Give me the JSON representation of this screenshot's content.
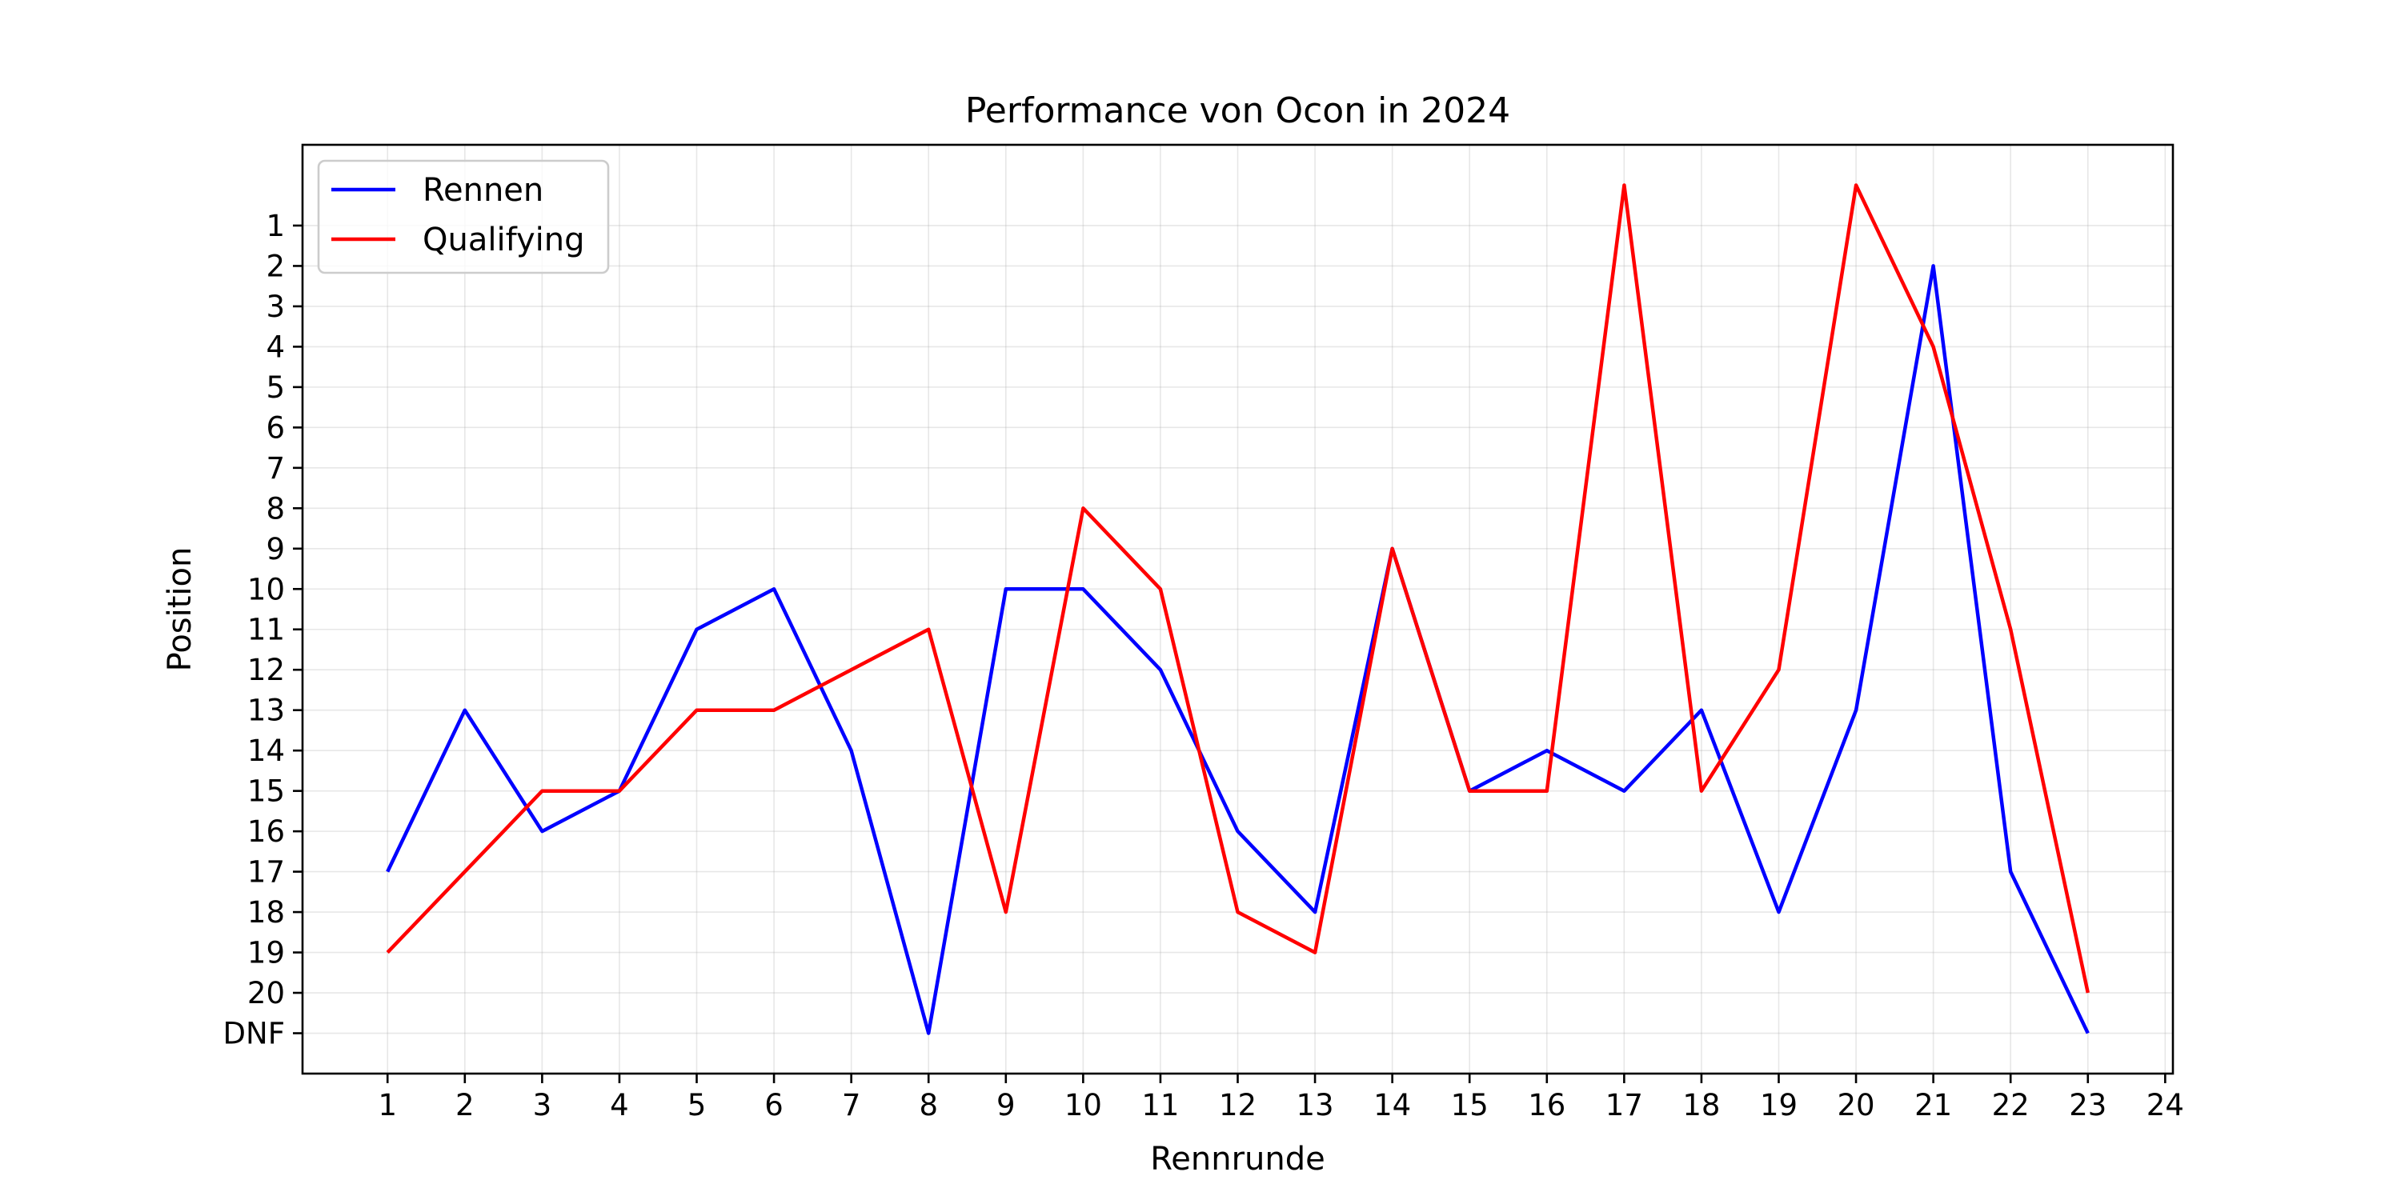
{
  "chart_data": {
    "type": "line",
    "title": "Performance von Ocon in 2024",
    "xlabel": "Rennrunde",
    "ylabel": "Position",
    "x": [
      1,
      2,
      3,
      4,
      5,
      6,
      7,
      8,
      9,
      10,
      11,
      12,
      13,
      14,
      15,
      16,
      17,
      18,
      19,
      20,
      21,
      22,
      23
    ],
    "x_ticks": [
      "1",
      "2",
      "3",
      "4",
      "5",
      "6",
      "7",
      "8",
      "9",
      "10",
      "11",
      "12",
      "13",
      "14",
      "15",
      "16",
      "17",
      "18",
      "19",
      "20",
      "21",
      "22",
      "23",
      "24"
    ],
    "x_tick_values": [
      1,
      2,
      3,
      4,
      5,
      6,
      7,
      8,
      9,
      10,
      11,
      12,
      13,
      14,
      15,
      16,
      17,
      18,
      19,
      20,
      21,
      22,
      23,
      24
    ],
    "xlim": [
      -0.1,
      24.1
    ],
    "y_ticks": [
      "1",
      "2",
      "3",
      "4",
      "5",
      "6",
      "7",
      "8",
      "9",
      "10",
      "11",
      "12",
      "13",
      "14",
      "15",
      "16",
      "17",
      "18",
      "19",
      "20",
      "DNF"
    ],
    "y_tick_values": [
      1,
      2,
      3,
      4,
      5,
      6,
      7,
      8,
      9,
      10,
      11,
      12,
      13,
      14,
      15,
      16,
      17,
      18,
      19,
      20,
      21
    ],
    "ylim": [
      -1,
      22
    ],
    "y_inverted": true,
    "grid": true,
    "legend_position": "top-left",
    "series": [
      {
        "name": "Rennen",
        "color": "#0000ff",
        "values": [
          17,
          13,
          16,
          15,
          11,
          10,
          14,
          21,
          10,
          10,
          12,
          16,
          18,
          9,
          15,
          14,
          15,
          13,
          18,
          13,
          2,
          17,
          21
        ]
      },
      {
        "name": "Qualifying",
        "color": "#ff0000",
        "values": [
          19,
          17,
          15,
          15,
          13,
          13,
          12,
          11,
          18,
          8,
          10,
          18,
          19,
          9,
          15,
          15,
          0,
          15,
          12,
          0,
          4,
          11,
          20
        ]
      }
    ]
  }
}
